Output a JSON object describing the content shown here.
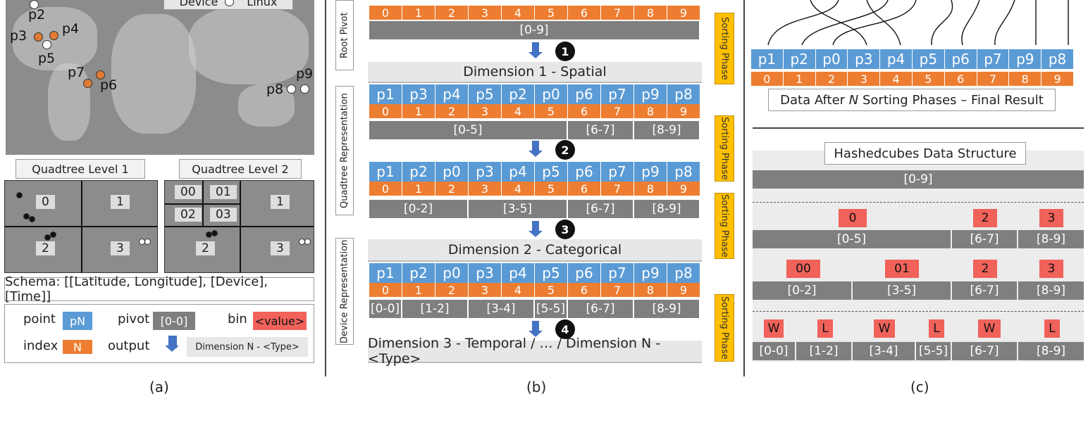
{
  "panel_a": {
    "legend_top": {
      "device_label": "Device",
      "os_label": "Linux"
    },
    "points": [
      {
        "label": "p2"
      },
      {
        "label": "p3"
      },
      {
        "label": "p4"
      },
      {
        "label": "p5"
      },
      {
        "label": "p7"
      },
      {
        "label": "p6"
      },
      {
        "label": "p9"
      },
      {
        "label": "p8"
      }
    ],
    "quad1_title": "Quadtree Level 1",
    "quad2_title": "Quadtree Level 2",
    "quad1_cells": [
      "0",
      "1",
      "2",
      "3"
    ],
    "quad2_cells": [
      "00",
      "01",
      "02",
      "03",
      "1",
      "2",
      "3"
    ],
    "schema": "Schema: [[Latitude, Longitude], [Device], [Time]]",
    "legend": {
      "point": "point",
      "point_swatch": "pN",
      "pivot": "pivot",
      "pivot_swatch": "[0-0]",
      "bin": "bin",
      "bin_swatch": "<value>",
      "index": "index",
      "index_swatch": "N",
      "output": "output",
      "output_box": "Dimension N - <Type>"
    },
    "caption": "(a)"
  },
  "panel_b": {
    "side_labels": {
      "root": "Root Pivot",
      "quadtree": "Quadtree Representation",
      "device": "Device Representation"
    },
    "sorting_label": "Sorting Phase",
    "indices": [
      "0",
      "1",
      "2",
      "3",
      "4",
      "5",
      "6",
      "7",
      "8",
      "9"
    ],
    "row0_pivot": "[0-9]",
    "steps": [
      "1",
      "2",
      "3",
      "4"
    ],
    "dim1": "Dimension 1 - Spatial",
    "row1_points": [
      "p1",
      "p3",
      "p4",
      "p5",
      "p2",
      "p0",
      "p6",
      "p7",
      "p9",
      "p8"
    ],
    "row1_pivots": [
      "[0-5]",
      "[6-7]",
      "[8-9]"
    ],
    "row2_points": [
      "p1",
      "p2",
      "p0",
      "p3",
      "p4",
      "p5",
      "p6",
      "p7",
      "p9",
      "p8"
    ],
    "row2_pivots": [
      "[0-2]",
      "[3-5]",
      "[6-7]",
      "[8-9]"
    ],
    "dim2": "Dimension 2 - Categorical",
    "row3_points": [
      "p1",
      "p2",
      "p0",
      "p3",
      "p4",
      "p5",
      "p6",
      "p7",
      "p9",
      "p8"
    ],
    "row3_pivots": [
      "[0-0]",
      "[1-2]",
      "[3-4]",
      "[5-5]",
      "[6-7]",
      "[8-9]"
    ],
    "dim3": "Dimension 3 - Temporal / … / Dimension N - <Type>",
    "caption": "(b)"
  },
  "panel_c": {
    "final_points": [
      "p1",
      "p2",
      "p0",
      "p3",
      "p4",
      "p5",
      "p6",
      "p7",
      "p9",
      "p8"
    ],
    "final_title_pre": "Data After ",
    "final_title_n": "N",
    "final_title_post": " Sorting Phases – Final Result",
    "hc_title": "Hashedcubes Data Structure",
    "level0": "[0-9]",
    "level1_tags": [
      "0",
      "2",
      "3"
    ],
    "level1_bins": [
      "[0-5]",
      "[6-7]",
      "[8-9]"
    ],
    "level2_tags": [
      "00",
      "01",
      "2",
      "3"
    ],
    "level2_bins": [
      "[0-2]",
      "[3-5]",
      "[6-7]",
      "[8-9]"
    ],
    "level3_tags": [
      "W",
      "L",
      "W",
      "L",
      "W",
      "L"
    ],
    "level3_bins": [
      "[0-0]",
      "[1-2]",
      "[3-4]",
      "[5-5]",
      "[6-7]",
      "[8-9]"
    ],
    "caption": "(c)"
  },
  "colors": {
    "blue": "#5b9bd5",
    "orange": "#ed7d31",
    "gray": "#7f7f7f",
    "red": "#f0625a",
    "yellow": "#ffc000"
  }
}
